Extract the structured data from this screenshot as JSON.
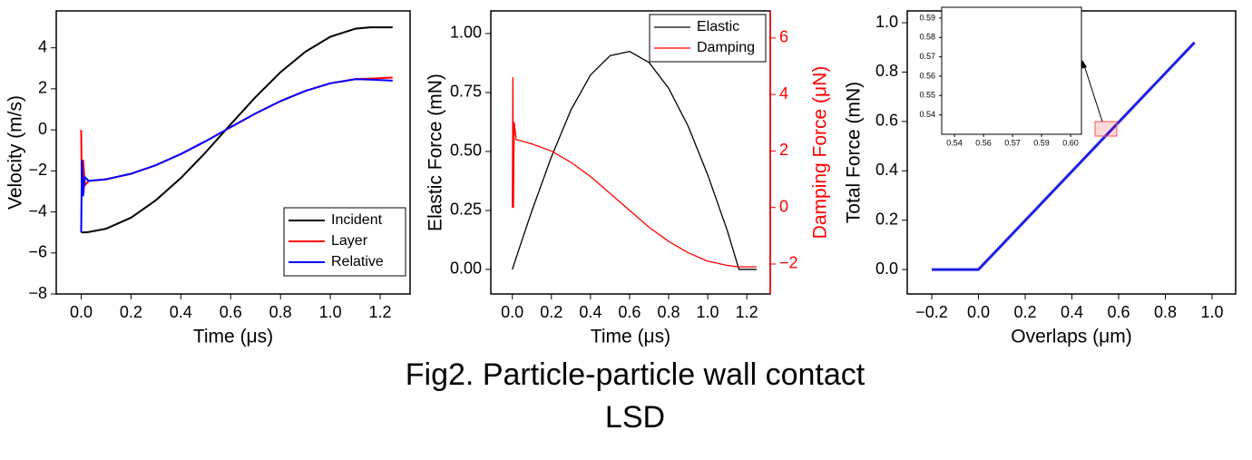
{
  "chart_data": [
    {
      "type": "line",
      "xlabel": "Time (μs)",
      "ylabel": "Velocity (m/s)",
      "x": [
        0,
        0.003,
        0.008,
        0.015,
        0.03,
        0.1,
        0.2,
        0.3,
        0.4,
        0.5,
        0.6,
        0.7,
        0.8,
        0.9,
        1.0,
        1.1,
        1.16,
        1.25
      ],
      "series": [
        {
          "name": "Incident",
          "color": "#000000",
          "values": [
            -5,
            -5,
            -5,
            -5,
            -4.98,
            -4.82,
            -4.28,
            -3.43,
            -2.35,
            -1.09,
            0.27,
            1.6,
            2.81,
            3.81,
            4.54,
            4.93,
            5,
            5
          ]
        },
        {
          "name": "Layer",
          "color": "#ff0000",
          "values": [
            0,
            -3.2,
            -1.5,
            -2.7,
            -2.49,
            -2.41,
            -2.14,
            -1.72,
            -1.18,
            -0.55,
            0.13,
            0.8,
            1.4,
            1.9,
            2.27,
            2.47,
            2.5,
            2.55
          ]
        },
        {
          "name": "Relative",
          "color": "#0000ff",
          "values": [
            -5,
            -1.5,
            -3.2,
            -2.3,
            -2.49,
            -2.41,
            -2.14,
            -1.72,
            -1.18,
            -0.55,
            0.13,
            0.8,
            1.4,
            1.9,
            2.27,
            2.47,
            2.45,
            2.4
          ]
        }
      ],
      "xlim": [
        -0.1,
        1.32
      ],
      "ylim": [
        -8,
        5.8
      ],
      "xticks": [
        {
          "value": 0,
          "label": "0.0"
        },
        0.2,
        0.4,
        0.6,
        0.8,
        {
          "value": 1,
          "label": "1.0"
        },
        1.2
      ],
      "yticks": [
        {
          "value": -8,
          "label": "−8"
        },
        {
          "value": -6,
          "label": "−6"
        },
        {
          "value": -4,
          "label": "−4"
        },
        {
          "value": -2,
          "label": "−2"
        },
        0,
        2,
        4
      ],
      "legend": "bottom-right"
    },
    {
      "type": "line",
      "xlabel": "Time (μs)",
      "ylabel": "Elastic Force (mN)",
      "y2label": "Damping Force (μN)",
      "y2color": "#ff0000",
      "x": [
        0,
        0.003,
        0.006,
        0.01,
        0.02,
        0.05,
        0.1,
        0.2,
        0.3,
        0.4,
        0.5,
        0.6,
        0.7,
        0.8,
        0.9,
        1.0,
        1.1,
        1.16,
        1.25
      ],
      "series": [
        {
          "name": "Elastic",
          "color": "#000000",
          "values": [
            0,
            0.008,
            0.015,
            0.025,
            0.05,
            0.125,
            0.248,
            0.477,
            0.676,
            0.824,
            0.906,
            0.924,
            0.877,
            0.768,
            0.607,
            0.401,
            0.165,
            0,
            0
          ]
        },
        {
          "name": "Damping",
          "color": "#ff0000",
          "axis": "y2",
          "values": [
            0,
            4.6,
            0,
            3,
            2.4,
            2.35,
            2.25,
            2.0,
            1.6,
            1.1,
            0.5,
            -0.1,
            -0.7,
            -1.2,
            -1.6,
            -1.9,
            -2.05,
            -2.1,
            -2.1
          ]
        }
      ],
      "xlim": [
        -0.11,
        1.32
      ],
      "ylim": [
        -0.104,
        1.096
      ],
      "y2lim": [
        -3.06,
        6.96
      ],
      "xticks": [
        {
          "value": 0,
          "label": "0.0"
        },
        0.2,
        0.4,
        0.6,
        0.8,
        {
          "value": 1,
          "label": "1.0"
        },
        1.2
      ],
      "yticks": [
        {
          "value": 0,
          "label": "0.00"
        },
        0.25,
        {
          "value": 0.5,
          "label": "0.50"
        },
        0.75,
        {
          "value": 1,
          "label": "1.00"
        }
      ],
      "y2ticks": [
        {
          "value": -2,
          "label": "−2"
        },
        0,
        2,
        4,
        6
      ],
      "legend": "top-right"
    },
    {
      "type": "line",
      "xlabel": "Overlaps (μm)",
      "ylabel": "Total Force (mN)",
      "x": [
        -0.2,
        0,
        0.925
      ],
      "series": [
        {
          "color": "#1f1fe6",
          "values": [
            0,
            0,
            0.92
          ]
        }
      ],
      "xlim": [
        -0.305,
        1.101
      ],
      "ylim": [
        -0.099,
        1.048
      ],
      "xticks": [
        {
          "value": -0.2,
          "label": "−0.2"
        },
        {
          "value": 0,
          "label": "0.0"
        },
        0.2,
        0.4,
        0.6,
        0.8,
        {
          "value": 1,
          "label": "1.0"
        }
      ],
      "yticks": [
        {
          "value": 0,
          "label": "0.0"
        },
        0.2,
        0.4,
        0.6,
        0.8,
        {
          "value": 1,
          "label": "1.0"
        }
      ]
    },
    {
      "type": "line",
      "linestyle": "dashed",
      "x": [
        0.536,
        0.54,
        0.5988,
        0.6033
      ],
      "series": [
        {
          "color": "#000000",
          "values": [
            0.54,
            null,
            0.5956,
            null
          ]
        },
        {
          "color": "#000000",
          "values": [
            null,
            0.54,
            null,
            0.595
          ]
        }
      ],
      "xlim": [
        0.5334,
        0.6056
      ],
      "ylim": [
        0.53,
        0.5956
      ],
      "xticks": [
        0.54,
        {
          "value": 0.555,
          "label": "0.56"
        },
        0.57,
        {
          "value": 0.585,
          "label": "0.59"
        },
        {
          "value": 0.6,
          "label": "0.60"
        }
      ],
      "yticks": [
        0.54,
        0.55,
        0.56,
        0.57,
        0.58,
        0.59
      ]
    }
  ],
  "caption": [
    "Fig2. Particle-particle wall contact",
    "LSD"
  ]
}
